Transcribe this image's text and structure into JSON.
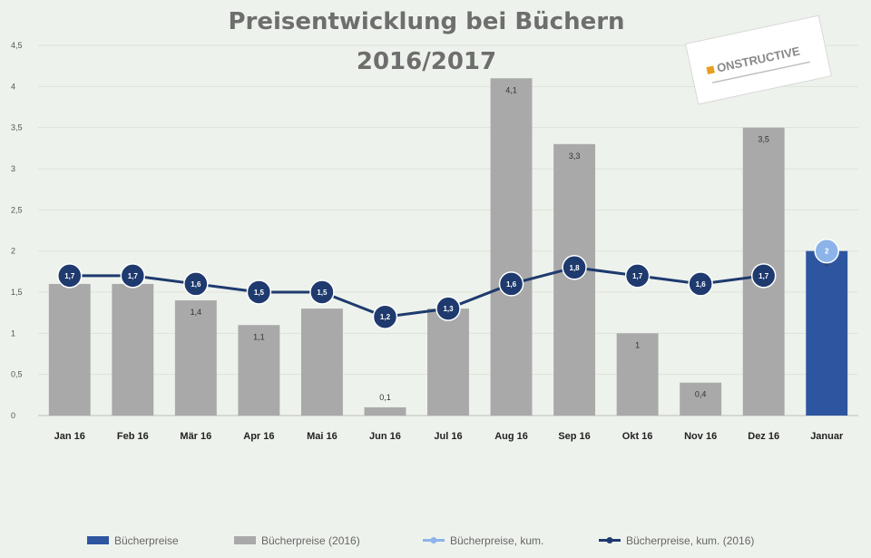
{
  "chart_data": {
    "type": "bar",
    "title": [
      "Preisentwicklung bei Büchern",
      "2016/2017"
    ],
    "categories": [
      "Jan 16",
      "Feb 16",
      "Mär 16",
      "Apr 16",
      "Mai 16",
      "Jun 16",
      "Jul 16",
      "Aug 16",
      "Sep 16",
      "Okt 16",
      "Nov 16",
      "Dez 16",
      "Januar"
    ],
    "ylim": [
      0,
      4.5
    ],
    "yticks": [
      "0",
      "0,5",
      "1",
      "1,5",
      "2",
      "2,5",
      "3",
      "3,5",
      "4",
      "4,5"
    ],
    "grid": true,
    "series": [
      {
        "name": "Bücherpreise",
        "kind": "bar",
        "color": "#2e55a0",
        "values": [
          null,
          null,
          null,
          null,
          null,
          null,
          null,
          null,
          null,
          null,
          null,
          null,
          2
        ],
        "labels": [
          "",
          "",
          "",
          "",
          "",
          "",
          "",
          "",
          "",
          "",
          "",
          "",
          "2"
        ]
      },
      {
        "name": "Bücherpreise (2016)",
        "kind": "bar",
        "color": "#a9a9a9",
        "values": [
          1.6,
          1.6,
          1.4,
          1.1,
          1.3,
          0.1,
          1.3,
          4.1,
          3.3,
          1,
          0.4,
          3.5,
          null
        ],
        "labels": [
          "",
          "",
          "1,4",
          "1,1",
          "",
          "0,1",
          "",
          "4,1",
          "3,3",
          "1",
          "0,4",
          "3,5",
          ""
        ]
      },
      {
        "name": "Bücherpreise, kum.",
        "kind": "line",
        "color": "#8db4e8",
        "values": [
          null,
          null,
          null,
          null,
          null,
          null,
          null,
          null,
          null,
          null,
          null,
          null,
          2
        ],
        "labels": [
          "",
          "",
          "",
          "",
          "",
          "",
          "",
          "",
          "",
          "",
          "",
          "",
          "2"
        ]
      },
      {
        "name": "Bücherpreise, kum. (2016)",
        "kind": "line",
        "color": "#1e3a6e",
        "values": [
          1.7,
          1.7,
          1.6,
          1.5,
          1.5,
          1.2,
          1.3,
          1.6,
          1.8,
          1.7,
          1.6,
          1.7,
          null
        ],
        "labels": [
          "1,7",
          "1,7",
          "1,6",
          "1,5",
          "1,5",
          "1,2",
          "1,3",
          "1,6",
          "1,8",
          "1,7",
          "1,6",
          "1,7",
          ""
        ]
      }
    ],
    "legend_position": "bottom"
  },
  "logo": {
    "name": "logo",
    "text": "ONSTRUCTIVE"
  }
}
